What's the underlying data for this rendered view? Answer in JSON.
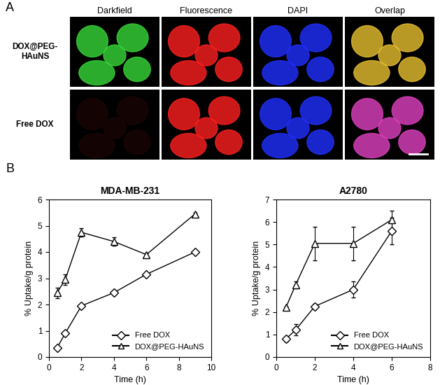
{
  "panel_a": {
    "label": "A",
    "columns": [
      "Darkfield",
      "Fluorescence",
      "DAPI",
      "Overlap"
    ],
    "rows": [
      "DOX@PEG-\nHAuNS",
      "Free DOX"
    ]
  },
  "panel_b": {
    "label": "B"
  },
  "chart_data": [
    {
      "type": "line",
      "title": "MDA-MB-231",
      "xlabel": "Time (h)",
      "ylabel": "% Uptake/g protein",
      "xlim": [
        0,
        10
      ],
      "xticks": [
        0,
        2,
        4,
        6,
        8,
        10
      ],
      "ylim": [
        0,
        6
      ],
      "yticks": [
        0,
        1,
        2,
        3,
        4,
        5,
        6
      ],
      "legend": "lower right",
      "series": [
        {
          "name": "Free DOX",
          "color": "#000000",
          "marker": "diamond",
          "x": [
            0.5,
            1,
            2,
            4,
            6,
            9
          ],
          "values": [
            0.35,
            0.9,
            1.95,
            2.45,
            3.15,
            4.0
          ],
          "errors": [
            0.05,
            0.05,
            0.05,
            0.05,
            0.05,
            0.05
          ]
        },
        {
          "name": "DOX@PEG-HAuNS",
          "color": "#000000",
          "marker": "triangle",
          "x": [
            0.5,
            1,
            2,
            4,
            6,
            9
          ],
          "values": [
            2.45,
            2.95,
            4.75,
            4.4,
            3.9,
            5.45
          ],
          "errors": [
            0.2,
            0.2,
            0.15,
            0.15,
            0.05,
            0.05
          ]
        }
      ]
    },
    {
      "type": "line",
      "title": "A2780",
      "xlabel": "Time (h)",
      "ylabel": "% Uptake/g protein",
      "xlim": [
        0,
        8
      ],
      "xticks": [
        0,
        2,
        4,
        6,
        8
      ],
      "ylim": [
        0,
        7
      ],
      "yticks": [
        0,
        1,
        2,
        3,
        4,
        5,
        6,
        7
      ],
      "legend": "lower right",
      "series": [
        {
          "name": "Free DOX",
          "color": "#000000",
          "marker": "diamond",
          "x": [
            0.5,
            1,
            2,
            4,
            6
          ],
          "values": [
            0.8,
            1.2,
            2.25,
            3.0,
            5.6
          ],
          "errors": [
            0.1,
            0.25,
            0.1,
            0.35,
            0.6
          ]
        },
        {
          "name": "DOX@PEG-HAuNS",
          "color": "#000000",
          "marker": "triangle",
          "x": [
            0.5,
            1,
            2,
            4,
            6
          ],
          "values": [
            2.2,
            3.2,
            5.05,
            5.05,
            6.1
          ],
          "errors": [
            0.05,
            0.15,
            0.75,
            0.75,
            0.4
          ]
        }
      ]
    }
  ]
}
